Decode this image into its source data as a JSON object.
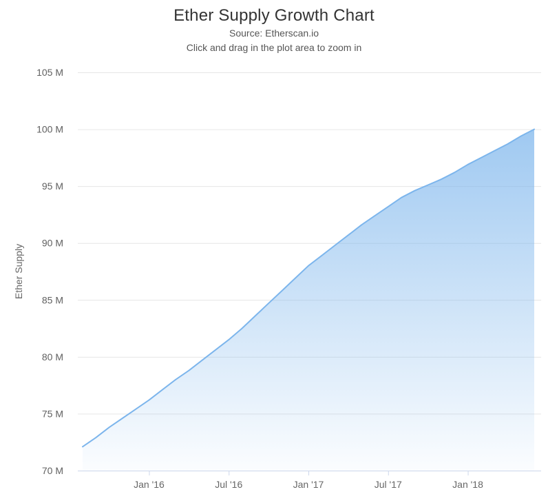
{
  "chart_data": {
    "type": "area",
    "title": "Ether Supply Growth Chart",
    "subtitle_source": "Source: Etherscan.io",
    "subtitle_hint": "Click and drag in the plot area to zoom in",
    "ylabel": "Ether Supply",
    "xlabel": "",
    "series_name": "Ether Supply",
    "y_unit": "M",
    "ylim": [
      70,
      105
    ],
    "grid": true,
    "legend": false,
    "x": [
      "Aug '15",
      "Sep '15",
      "Oct '15",
      "Nov '15",
      "Dec '15",
      "Jan '16",
      "Feb '16",
      "Mar '16",
      "Apr '16",
      "May '16",
      "Jun '16",
      "Jul '16",
      "Aug '16",
      "Sep '16",
      "Oct '16",
      "Nov '16",
      "Dec '16",
      "Jan '17",
      "Feb '17",
      "Mar '17",
      "Apr '17",
      "May '17",
      "Jun '17",
      "Jul '17",
      "Aug '17",
      "Sep '17",
      "Oct '17",
      "Nov '17",
      "Dec '17",
      "Jan '18",
      "Feb '18",
      "Mar '18",
      "Apr '18",
      "May '18",
      "Jun '18"
    ],
    "values": [
      72.1,
      72.9,
      73.8,
      74.6,
      75.4,
      76.2,
      77.1,
      78.0,
      78.8,
      79.7,
      80.6,
      81.5,
      82.5,
      83.6,
      84.7,
      85.8,
      86.9,
      88.0,
      88.9,
      89.8,
      90.7,
      91.6,
      92.4,
      93.2,
      94.0,
      94.6,
      95.1,
      95.6,
      96.2,
      96.9,
      97.5,
      98.1,
      98.7,
      99.4,
      100.0
    ],
    "yticks": {
      "values": [
        70,
        75,
        80,
        85,
        90,
        95,
        100,
        105
      ],
      "labels": [
        "70 M",
        "75 M",
        "80 M",
        "85 M",
        "90 M",
        "95 M",
        "100 M",
        "105 M"
      ]
    },
    "xticks": [
      {
        "index": 5,
        "label": "Jan '16"
      },
      {
        "index": 11,
        "label": "Jul '16"
      },
      {
        "index": 17,
        "label": "Jan '17"
      },
      {
        "index": 23,
        "label": "Jul '17"
      },
      {
        "index": 29,
        "label": "Jan '18"
      }
    ],
    "colors": {
      "line": "#7cb5ec",
      "fill": "#7cb5ec",
      "grid": "#e6e6e6",
      "axis": "#ccd6eb",
      "title_text": "#333333",
      "subtitle_text": "#555555",
      "tick_text": "#606060",
      "axis_title_text": "#666666"
    }
  }
}
